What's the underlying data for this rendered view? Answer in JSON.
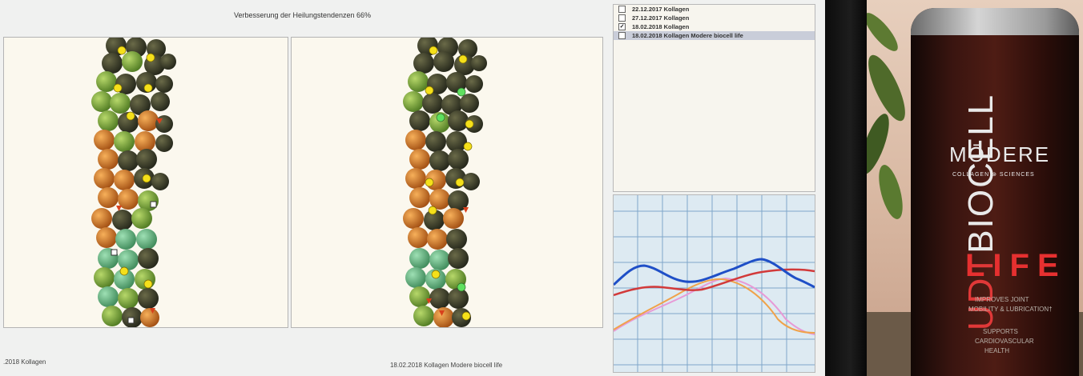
{
  "app": {
    "title": "Verbesserung der Heilungstendenzen 66%",
    "left_panel_label": ".2018 Kollagen",
    "right_panel_label": "18.02.2018 Kollagen Modere biocell life"
  },
  "measurements": {
    "items": [
      {
        "label": "22.12.2017 Kollagen",
        "checked": false,
        "selected": false,
        "check_glyph": ""
      },
      {
        "label": "27.12.2017 Kollagen",
        "checked": false,
        "selected": false,
        "check_glyph": ""
      },
      {
        "label": "18.02.2018 Kollagen",
        "checked": true,
        "selected": false,
        "check_glyph": "✓"
      },
      {
        "label": "18.02.2018 Kollagen Modere biocell life",
        "checked": false,
        "selected": true,
        "check_glyph": ""
      }
    ]
  },
  "colors": {
    "blue_curve": "#1f4fc7",
    "red_curve": "#d23a3a",
    "orange_curve": "#f0a24a",
    "pink_curve": "#e79ad6",
    "grid": "#7fa6c9"
  },
  "bottle": {
    "brand": "MŌDERE",
    "tagline": "COLLAGEN",
    "tagline2": "SCIENCES",
    "vertical_text": "BIOCELL",
    "vertical_prefix": "UDT",
    "product": "LIFE",
    "desc1": "IMPROVES JOINT",
    "desc2": "MOBILITY & LUBRICATION†",
    "desc3": "SUPPORTS",
    "desc4": "CARDIOVASCULAR",
    "desc5": "HEALTH"
  }
}
